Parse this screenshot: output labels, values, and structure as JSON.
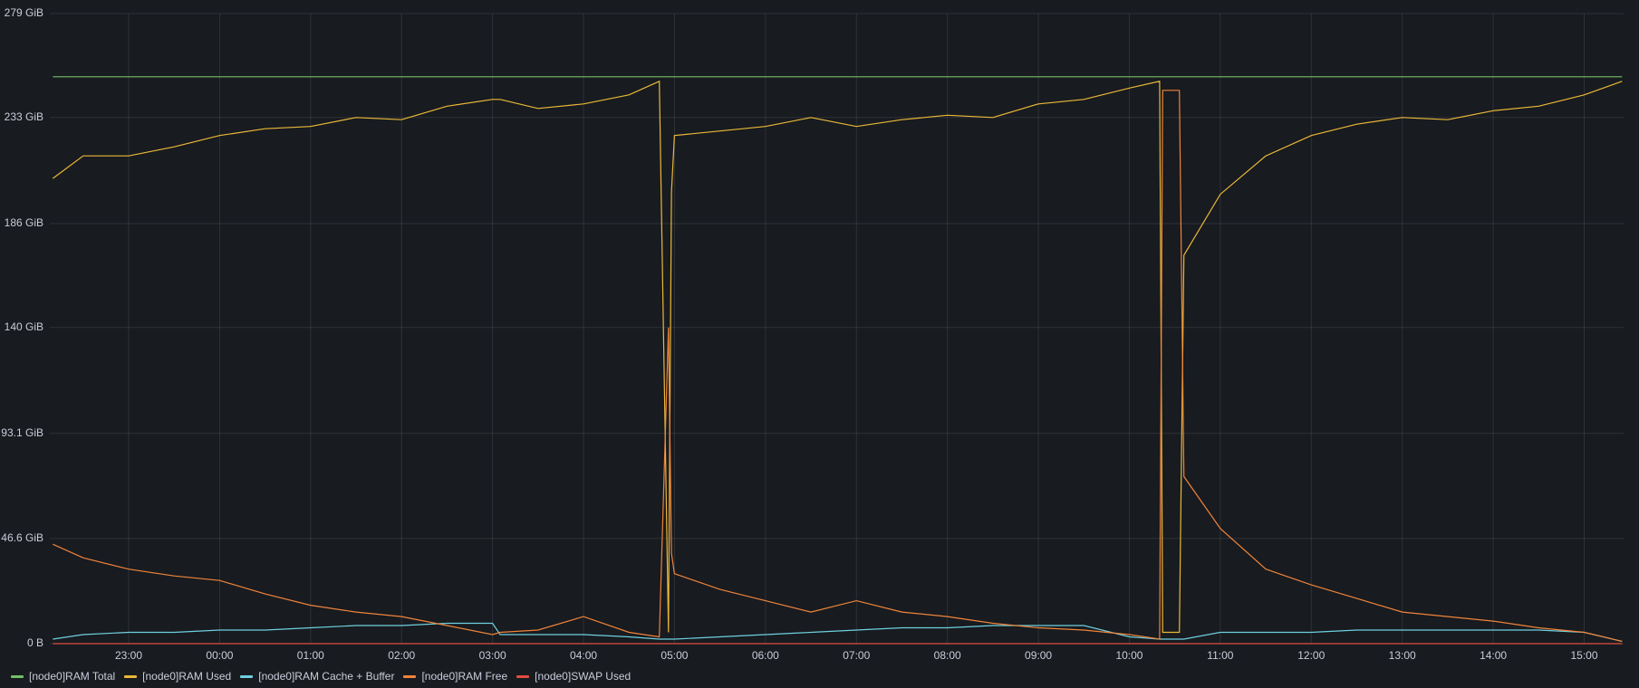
{
  "chart_data": {
    "type": "line",
    "x": [
      "22:10",
      "22:30",
      "23:00",
      "23:30",
      "00:00",
      "00:30",
      "01:00",
      "01:30",
      "02:00",
      "02:30",
      "03:00",
      "03:05",
      "03:30",
      "04:00",
      "04:30",
      "04:50",
      "04:56",
      "04:58",
      "05:00",
      "05:30",
      "06:00",
      "06:30",
      "07:00",
      "07:30",
      "08:00",
      "08:30",
      "09:00",
      "09:30",
      "10:00",
      "10:20",
      "10:22",
      "10:33",
      "10:36",
      "11:00",
      "11:30",
      "12:00",
      "12:30",
      "13:00",
      "13:30",
      "14:00",
      "14:30",
      "15:00",
      "15:25"
    ],
    "series": [
      {
        "name": "[node0]RAM Total",
        "color": "#73bf69",
        "values": [
          251,
          251,
          251,
          251,
          251,
          251,
          251,
          251,
          251,
          251,
          251,
          251,
          251,
          251,
          251,
          251,
          251,
          251,
          251,
          251,
          251,
          251,
          251,
          251,
          251,
          251,
          251,
          251,
          251,
          251,
          251,
          251,
          251,
          251,
          251,
          251,
          251,
          251,
          251,
          251,
          251,
          251,
          251
        ]
      },
      {
        "name": "[node0]RAM Used",
        "color": "#eab839",
        "values": [
          206,
          216,
          216,
          220,
          225,
          228,
          229,
          233,
          232,
          238,
          241,
          241,
          237,
          239,
          243,
          249,
          5,
          200,
          225,
          227,
          229,
          233,
          229,
          232,
          234,
          233,
          239,
          241,
          246,
          249,
          5,
          5,
          172,
          199,
          216,
          225,
          230,
          233,
          232,
          236,
          238,
          243,
          249
        ]
      },
      {
        "name": "[node0]RAM Cache + Buffer",
        "color": "#6ed0e0",
        "values": [
          2,
          4,
          5,
          5,
          6,
          6,
          7,
          8,
          8,
          9,
          9,
          4,
          4,
          4,
          3,
          2,
          2,
          2,
          2,
          3,
          4,
          5,
          6,
          7,
          7,
          8,
          8,
          8,
          3,
          2,
          2,
          2,
          2,
          5,
          5,
          5,
          6,
          6,
          6,
          6,
          6,
          5,
          1
        ]
      },
      {
        "name": "[node0]RAM Free",
        "color": "#ef843c",
        "values": [
          44,
          38,
          33,
          30,
          28,
          22,
          17,
          14,
          12,
          8,
          4,
          5,
          6,
          12,
          5,
          3,
          140,
          40,
          31,
          24,
          19,
          14,
          19,
          14,
          12,
          9,
          7,
          6,
          4,
          2,
          245,
          245,
          74,
          51,
          33,
          26,
          20,
          14,
          12,
          10,
          7,
          5,
          1
        ]
      },
      {
        "name": "[node0]SWAP Used",
        "color": "#e24d42",
        "values": [
          0,
          0,
          0,
          0,
          0,
          0,
          0,
          0,
          0,
          0,
          0,
          0,
          0,
          0,
          0,
          0,
          0,
          0,
          0,
          0,
          0,
          0,
          0,
          0,
          0,
          0,
          0,
          0,
          0,
          0,
          0,
          0,
          0,
          0,
          0,
          0,
          0,
          0,
          0,
          0,
          0,
          0,
          0
        ]
      }
    ],
    "xlim": [
      "22:08",
      "15:26"
    ],
    "xticks": [
      "23:00",
      "00:00",
      "01:00",
      "02:00",
      "03:00",
      "04:00",
      "05:00",
      "06:00",
      "07:00",
      "08:00",
      "09:00",
      "10:00",
      "11:00",
      "12:00",
      "13:00",
      "14:00",
      "15:00"
    ],
    "ylim": [
      0,
      279
    ],
    "yticks": [
      {
        "value": 0,
        "label": "0 B"
      },
      {
        "value": 46.6,
        "label": "46.6 GiB"
      },
      {
        "value": 93.1,
        "label": "93.1 GiB"
      },
      {
        "value": 140,
        "label": "140 GiB"
      },
      {
        "value": 186,
        "label": "186 GiB"
      },
      {
        "value": 233,
        "label": "233 GiB"
      },
      {
        "value": 279,
        "label": "279 GiB"
      }
    ],
    "grid": true
  }
}
